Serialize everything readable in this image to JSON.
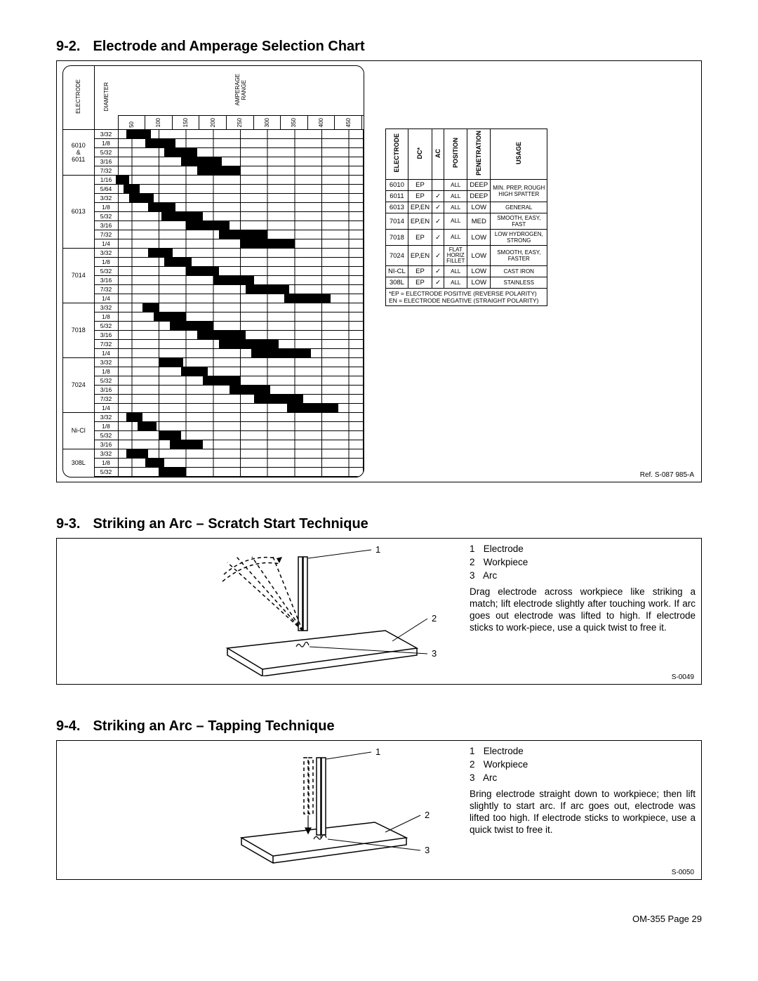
{
  "page_footer": "OM-355 Page 29",
  "sec92": {
    "number": "9-2.",
    "title": "Electrode and Amperage Selection Chart",
    "ref": "Ref. S-087 985-A",
    "chart": {
      "header_electrode": "ELECTRODE",
      "header_diameter": "DIAMETER",
      "header_amperage": "AMPERAGE\nRANGE",
      "amp_ticks": [
        "50",
        "100",
        "150",
        "200",
        "250",
        "300",
        "350",
        "400",
        "450"
      ],
      "groups": [
        {
          "label": "6010\n&\n6011",
          "rows": [
            {
              "dia": "3/32",
              "start": 40,
              "end": 85
            },
            {
              "dia": "1/8",
              "start": 75,
              "end": 130
            },
            {
              "dia": "5/32",
              "start": 110,
              "end": 170
            },
            {
              "dia": "3/16",
              "start": 140,
              "end": 215
            },
            {
              "dia": "7/32",
              "start": 170,
              "end": 250
            }
          ]
        },
        {
          "label": "6013",
          "rows": [
            {
              "dia": "1/16",
              "start": 20,
              "end": 45
            },
            {
              "dia": "5/64",
              "start": 35,
              "end": 65
            },
            {
              "dia": "3/32",
              "start": 45,
              "end": 90
            },
            {
              "dia": "1/8",
              "start": 80,
              "end": 130
            },
            {
              "dia": "5/32",
              "start": 105,
              "end": 180
            },
            {
              "dia": "3/16",
              "start": 150,
              "end": 230
            },
            {
              "dia": "7/32",
              "start": 210,
              "end": 300
            },
            {
              "dia": "1/4",
              "start": 250,
              "end": 350
            }
          ]
        },
        {
          "label": "7014",
          "rows": [
            {
              "dia": "3/32",
              "start": 80,
              "end": 125
            },
            {
              "dia": "1/8",
              "start": 110,
              "end": 160
            },
            {
              "dia": "5/32",
              "start": 150,
              "end": 210
            },
            {
              "dia": "3/16",
              "start": 200,
              "end": 275
            },
            {
              "dia": "7/32",
              "start": 260,
              "end": 340
            },
            {
              "dia": "1/4",
              "start": 330,
              "end": 415
            }
          ]
        },
        {
          "label": "7018",
          "rows": [
            {
              "dia": "3/32",
              "start": 70,
              "end": 100
            },
            {
              "dia": "1/8",
              "start": 90,
              "end": 150
            },
            {
              "dia": "5/32",
              "start": 120,
              "end": 200
            },
            {
              "dia": "3/16",
              "start": 170,
              "end": 260
            },
            {
              "dia": "7/32",
              "start": 210,
              "end": 320
            },
            {
              "dia": "1/4",
              "start": 270,
              "end": 380
            }
          ]
        },
        {
          "label": "7024",
          "rows": [
            {
              "dia": "3/32",
              "start": 100,
              "end": 145
            },
            {
              "dia": "1/8",
              "start": 140,
              "end": 190
            },
            {
              "dia": "5/32",
              "start": 180,
              "end": 250
            },
            {
              "dia": "3/16",
              "start": 230,
              "end": 305
            },
            {
              "dia": "7/32",
              "start": 275,
              "end": 365
            },
            {
              "dia": "1/4",
              "start": 335,
              "end": 430
            }
          ]
        },
        {
          "label": "Ni-Cl",
          "rows": [
            {
              "dia": "3/32",
              "start": 40,
              "end": 70
            },
            {
              "dia": "1/8",
              "start": 60,
              "end": 95
            },
            {
              "dia": "5/32",
              "start": 100,
              "end": 140
            },
            {
              "dia": "3/16",
              "start": 120,
              "end": 180
            }
          ]
        },
        {
          "label": "308L",
          "rows": [
            {
              "dia": "3/32",
              "start": 40,
              "end": 80
            },
            {
              "dia": "1/8",
              "start": 75,
              "end": 110
            },
            {
              "dia": "5/32",
              "start": 100,
              "end": 150
            }
          ]
        }
      ],
      "amp_min": 25,
      "amp_max": 475
    },
    "usage": {
      "headers": [
        "ELECTRODE",
        "DC*",
        "AC",
        "POSITION",
        "PENETRATION",
        "USAGE"
      ],
      "rows": [
        {
          "e": "6010",
          "dc": "EP",
          "ac": "",
          "pos": "ALL",
          "pen": "DEEP",
          "use": "MIN. PREP, ROUGH\nHIGH SPATTER",
          "merge_use": true
        },
        {
          "e": "6011",
          "dc": "EP",
          "ac": "✓",
          "pos": "ALL",
          "pen": "DEEP",
          "use": ""
        },
        {
          "e": "6013",
          "dc": "EP,EN",
          "ac": "✓",
          "pos": "ALL",
          "pen": "LOW",
          "use": "GENERAL"
        },
        {
          "e": "7014",
          "dc": "EP,EN",
          "ac": "✓",
          "pos": "ALL",
          "pen": "MED",
          "use": "SMOOTH, EASY,\nFAST"
        },
        {
          "e": "7018",
          "dc": "EP",
          "ac": "✓",
          "pos": "ALL",
          "pen": "LOW",
          "use": "LOW HYDROGEN,\nSTRONG"
        },
        {
          "e": "7024",
          "dc": "EP,EN",
          "ac": "✓",
          "pos": "FLAT\nHORIZ\nFILLET",
          "pen": "LOW",
          "use": "SMOOTH, EASY,\nFASTER"
        },
        {
          "e": "NI-CL",
          "dc": "EP",
          "ac": "✓",
          "pos": "ALL",
          "pen": "LOW",
          "use": "CAST IRON"
        },
        {
          "e": "308L",
          "dc": "EP",
          "ac": "✓",
          "pos": "ALL",
          "pen": "LOW",
          "use": "STAINLESS"
        }
      ],
      "footer": "*EP = ELECTRODE POSITIVE (REVERSE POLARITY)\n EN = ELECTRODE NEGATIVE (STRAIGHT POLARITY)"
    }
  },
  "sec93": {
    "number": "9-3.",
    "title": "Striking an Arc – Scratch Start Technique",
    "ref": "S-0049",
    "legend": [
      {
        "n": "1",
        "t": "Electrode"
      },
      {
        "n": "2",
        "t": "Workpiece"
      },
      {
        "n": "3",
        "t": "Arc"
      }
    ],
    "body": "Drag electrode across workpiece like striking a match; lift electrode slightly after touching work. If arc goes out electrode was lifted to high. If electrode sticks to work-piece, use a quick twist to free it."
  },
  "sec94": {
    "number": "9-4.",
    "title": "Striking an Arc – Tapping Technique",
    "ref": "S-0050",
    "legend": [
      {
        "n": "1",
        "t": "Electrode"
      },
      {
        "n": "2",
        "t": "Workpiece"
      },
      {
        "n": "3",
        "t": "Arc"
      }
    ],
    "body": "Bring electrode straight down to workpiece; then lift slightly to start arc. If arc goes out, electrode was lifted too high. If electrode sticks to workpiece, use a quick twist to free it."
  }
}
